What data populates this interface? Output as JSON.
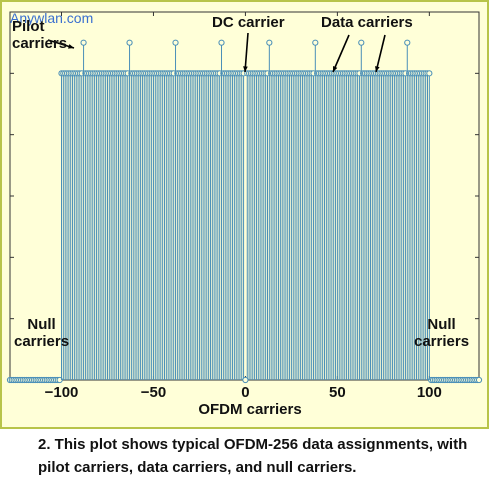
{
  "watermark": "Anywlan.com",
  "annotations": {
    "pilot": "Pilot\ncarriers",
    "dc": "DC carrier",
    "data": "Data carriers",
    "null_left": "Null\ncarriers",
    "null_right": "Null\ncarriers"
  },
  "caption": "2. This plot shows typical OFDM-256 data assignments, with pilot carriers, data carriers, and null carriers.",
  "chart_data": {
    "type": "stem",
    "xlabel": "OFDM carriers",
    "xlim": [
      -128,
      127
    ],
    "ylim": [
      0,
      1.2
    ],
    "xticks": [
      -100,
      -50,
      0,
      50,
      100
    ],
    "null_carriers": {
      "x_ranges": [
        [
          -128,
          -101
        ],
        [
          101,
          127
        ]
      ],
      "value": 0
    },
    "dc_carrier": {
      "x": 0,
      "value": 0
    },
    "data_carriers": {
      "x_ranges": [
        [
          -100,
          -1
        ],
        [
          1,
          100
        ]
      ],
      "value": 1
    },
    "pilot_carriers": {
      "x": [
        -88,
        -63,
        -38,
        -13,
        13,
        38,
        63,
        88
      ],
      "value": 1.1
    },
    "stem_color": "#4a8fb8",
    "frame_color": "#b8c44a",
    "background": "#ffffd8"
  }
}
